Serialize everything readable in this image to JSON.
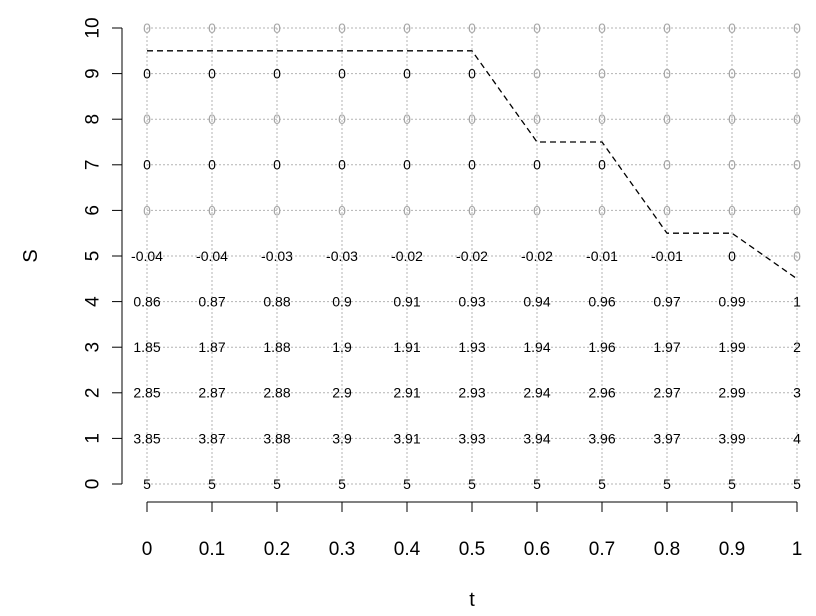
{
  "chart_data": {
    "type": "scatter",
    "title": "",
    "xlabel": "t",
    "ylabel": "S",
    "xlim": [
      0,
      1
    ],
    "ylim": [
      0,
      10
    ],
    "grid": true,
    "x_ticks": [
      "0",
      "0.1",
      "0.2",
      "0.3",
      "0.4",
      "0.5",
      "0.6",
      "0.7",
      "0.8",
      "0.9",
      "1"
    ],
    "y_ticks": [
      "0",
      "1",
      "2",
      "3",
      "4",
      "5",
      "6",
      "7",
      "8",
      "9",
      "10"
    ],
    "x": [
      0,
      0.1,
      0.2,
      0.3,
      0.4,
      0.5,
      0.6,
      0.7,
      0.8,
      0.9,
      1
    ],
    "y": [
      0,
      1,
      2,
      3,
      4,
      5,
      6,
      7,
      8,
      9,
      10
    ],
    "colors": {
      "active": "#000000",
      "inactive": "#a6a6a6",
      "grid": "#b3b3b3",
      "boundary": "#000000"
    },
    "labels": [
      [
        "5",
        "5",
        "5",
        "5",
        "5",
        "5",
        "5",
        "5",
        "5",
        "5",
        "5"
      ],
      [
        "3.85",
        "3.87",
        "3.88",
        "3.9",
        "3.91",
        "3.93",
        "3.94",
        "3.96",
        "3.97",
        "3.99",
        "4"
      ],
      [
        "2.85",
        "2.87",
        "2.88",
        "2.9",
        "2.91",
        "2.93",
        "2.94",
        "2.96",
        "2.97",
        "2.99",
        "3"
      ],
      [
        "1.85",
        "1.87",
        "1.88",
        "1.9",
        "1.91",
        "1.93",
        "1.94",
        "1.96",
        "1.97",
        "1.99",
        "2"
      ],
      [
        "0.86",
        "0.87",
        "0.88",
        "0.9",
        "0.91",
        "0.93",
        "0.94",
        "0.96",
        "0.97",
        "0.99",
        "1"
      ],
      [
        "-0.04",
        "-0.04",
        "-0.03",
        "-0.03",
        "-0.02",
        "-0.02",
        "-0.02",
        "-0.01",
        "-0.01",
        "0",
        "0"
      ],
      [
        "0",
        "0",
        "0",
        "0",
        "0",
        "0",
        "0",
        "0",
        "0",
        "0",
        "0"
      ],
      [
        "0",
        "0",
        "0",
        "0",
        "0",
        "0",
        "0",
        "0",
        "0",
        "0",
        "0"
      ],
      [
        "0",
        "0",
        "0",
        "0",
        "0",
        "0",
        "0",
        "0",
        "0",
        "0",
        "0"
      ],
      [
        "0",
        "0",
        "0",
        "0",
        "0",
        "0",
        "0",
        "0",
        "0",
        "0",
        "0"
      ],
      [
        "0",
        "0",
        "0",
        "0",
        "0",
        "0",
        "0",
        "0",
        "0",
        "0",
        "0"
      ]
    ],
    "label_inactive": [
      [
        false,
        false,
        false,
        false,
        false,
        false,
        false,
        false,
        false,
        false,
        false
      ],
      [
        false,
        false,
        false,
        false,
        false,
        false,
        false,
        false,
        false,
        false,
        false
      ],
      [
        false,
        false,
        false,
        false,
        false,
        false,
        false,
        false,
        false,
        false,
        false
      ],
      [
        false,
        false,
        false,
        false,
        false,
        false,
        false,
        false,
        false,
        false,
        false
      ],
      [
        false,
        false,
        false,
        false,
        false,
        false,
        false,
        false,
        false,
        false,
        false
      ],
      [
        false,
        false,
        false,
        false,
        false,
        false,
        false,
        false,
        false,
        false,
        true
      ],
      [
        true,
        true,
        true,
        true,
        true,
        true,
        true,
        true,
        true,
        true,
        true
      ],
      [
        false,
        false,
        false,
        false,
        false,
        false,
        false,
        false,
        true,
        true,
        true
      ],
      [
        true,
        true,
        true,
        true,
        true,
        true,
        true,
        true,
        true,
        true,
        true
      ],
      [
        false,
        false,
        false,
        false,
        false,
        false,
        true,
        true,
        true,
        true,
        true
      ],
      [
        true,
        true,
        true,
        true,
        true,
        true,
        true,
        true,
        true,
        true,
        true
      ]
    ],
    "boundary": {
      "style": "dashed",
      "points": [
        [
          0,
          9.5
        ],
        [
          0.5,
          9.5
        ],
        [
          0.55,
          8.5
        ],
        [
          0.6,
          7.5
        ],
        [
          0.7,
          7.5
        ],
        [
          0.75,
          6.5
        ],
        [
          0.8,
          5.5
        ],
        [
          0.9,
          5.5
        ],
        [
          1.0,
          4.5
        ]
      ]
    }
  }
}
